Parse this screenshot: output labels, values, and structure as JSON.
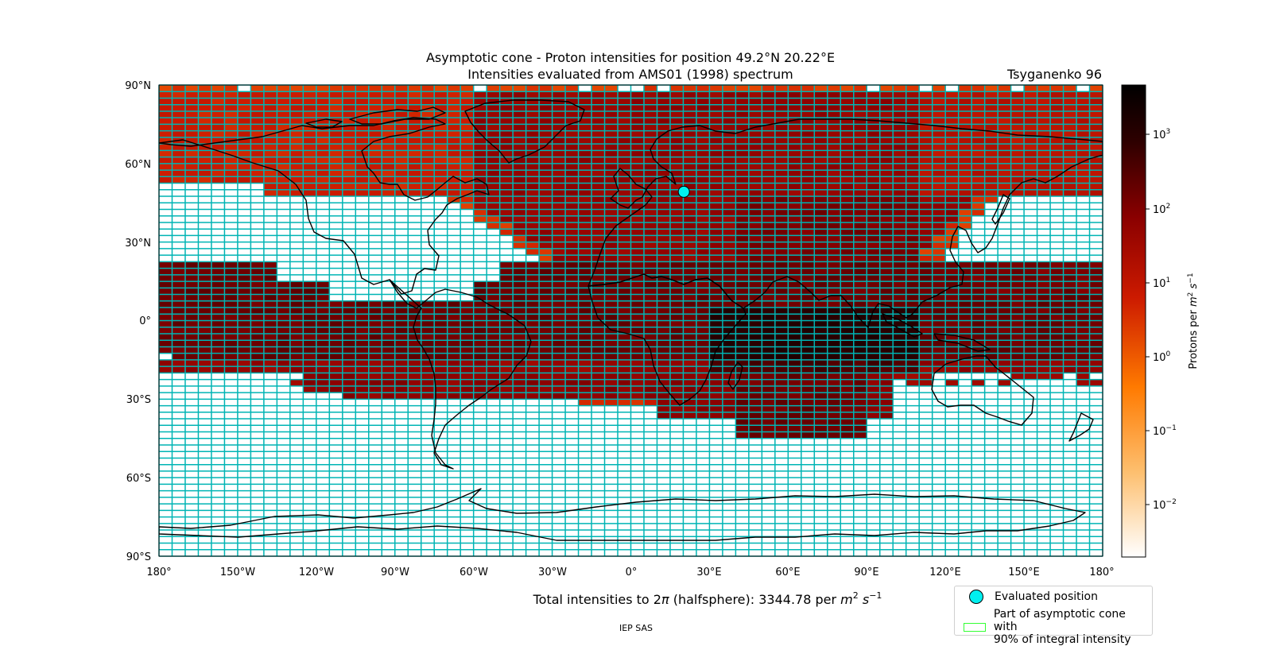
{
  "title": {
    "line1": "Asymptotic cone - Proton intensities for position 49.2°N 20.22°E",
    "line2": "Intensities evaluated from AMS01 (1998) spectrum"
  },
  "model_label": "Tsyganenko 96",
  "total_label": {
    "prefix": "Total intensities to 2",
    "pi": "π",
    "middle": " (halfsphere): 3344.78 per ",
    "m": "m",
    "m_exp": "2",
    "s": "s",
    "s_exp": "−1"
  },
  "footer": "IEP SAS",
  "legend": {
    "evaluated_position": "Evaluated position",
    "cone_line1": "Part of asymptotic cone with",
    "cone_line2": "90% of integral intensity"
  },
  "colorbar": {
    "label_prefix": "Protons per ",
    "label_m": "m",
    "label_m_exp": "2",
    "label_s": "s",
    "label_s_exp": "−1",
    "ticks": [
      {
        "base": "10",
        "exp": "3",
        "value": 1000
      },
      {
        "base": "10",
        "exp": "2",
        "value": 100
      },
      {
        "base": "10",
        "exp": "1",
        "value": 10
      },
      {
        "base": "10",
        "exp": "0",
        "value": 1
      },
      {
        "base": "10",
        "exp": "−1",
        "value": 0.1
      },
      {
        "base": "10",
        "exp": "−2",
        "value": 0.01
      }
    ],
    "scale": "log",
    "colormap": [
      "#ffffff",
      "#fdbf6f",
      "#ff7a00",
      "#cc1a00",
      "#8a0000",
      "#2e0000",
      "#000000"
    ]
  },
  "axes": {
    "lat_ticks": [
      "90°N",
      "60°N",
      "30°N",
      "0°",
      "30°S",
      "60°S",
      "90°S"
    ],
    "lon_ticks": [
      "180°",
      "150°W",
      "120°W",
      "90°W",
      "60°W",
      "30°W",
      "0°",
      "30°E",
      "60°E",
      "90°E",
      "120°E",
      "150°E",
      "180°"
    ]
  },
  "evaluated_position": {
    "lat": 49.2,
    "lon": 20.22
  },
  "colors": {
    "grid": "#00b4b4",
    "marker": "#00f0f0",
    "cone_outline": "#33ff33",
    "empty_cell": "#ffffff",
    "coast": "#000000"
  },
  "grid": {
    "lon_step_deg": 5,
    "lat_step_deg": 2.5
  }
}
